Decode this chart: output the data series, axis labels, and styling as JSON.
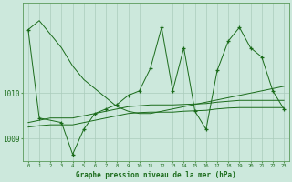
{
  "background_color": "#cce8dc",
  "grid_color": "#aaccbb",
  "line_color": "#1a6b1a",
  "xlabel": "Graphe pression niveau de la mer (hPa)",
  "xlim": [
    -0.5,
    23.5
  ],
  "ylim": [
    1008.5,
    1012.0
  ],
  "yticks": [
    1009,
    1010
  ],
  "xticks": [
    0,
    1,
    2,
    3,
    4,
    5,
    6,
    7,
    8,
    9,
    10,
    11,
    12,
    13,
    14,
    15,
    16,
    17,
    18,
    19,
    20,
    21,
    22,
    23
  ],
  "series_smooth_decline": {
    "x": [
      0,
      1,
      2,
      3,
      4,
      5,
      6,
      7,
      8,
      9,
      10,
      11,
      12,
      13,
      14,
      15,
      16,
      17,
      18,
      19,
      20,
      21,
      22,
      23
    ],
    "y": [
      1011.4,
      1011.6,
      1011.3,
      1011.0,
      1010.6,
      1010.3,
      1010.1,
      1009.9,
      1009.7,
      1009.6,
      1009.55,
      1009.55,
      1009.6,
      1009.65,
      1009.7,
      1009.75,
      1009.8,
      1009.85,
      1009.9,
      1009.95,
      1010.0,
      1010.05,
      1010.1,
      1010.15
    ]
  },
  "series_flat_upper": {
    "x": [
      0,
      1,
      2,
      3,
      4,
      5,
      6,
      7,
      8,
      9,
      10,
      11,
      12,
      13,
      14,
      15,
      16,
      17,
      18,
      19,
      20,
      21,
      22,
      23
    ],
    "y": [
      1009.35,
      1009.4,
      1009.45,
      1009.45,
      1009.45,
      1009.5,
      1009.55,
      1009.6,
      1009.65,
      1009.7,
      1009.72,
      1009.74,
      1009.74,
      1009.74,
      1009.75,
      1009.76,
      1009.77,
      1009.8,
      1009.82,
      1009.84,
      1009.84,
      1009.84,
      1009.84,
      1009.84
    ]
  },
  "series_flat_lower": {
    "x": [
      0,
      1,
      2,
      3,
      4,
      5,
      6,
      7,
      8,
      9,
      10,
      11,
      12,
      13,
      14,
      15,
      16,
      17,
      18,
      19,
      20,
      21,
      22,
      23
    ],
    "y": [
      1009.25,
      1009.28,
      1009.3,
      1009.3,
      1009.3,
      1009.35,
      1009.4,
      1009.45,
      1009.5,
      1009.55,
      1009.57,
      1009.58,
      1009.58,
      1009.58,
      1009.6,
      1009.61,
      1009.62,
      1009.65,
      1009.67,
      1009.68,
      1009.68,
      1009.68,
      1009.68,
      1009.68
    ]
  },
  "series_zigzag": {
    "x": [
      0,
      1,
      3,
      4,
      5,
      6,
      7,
      8,
      9,
      10,
      11,
      12,
      13,
      14,
      15,
      16,
      17,
      18,
      19,
      20,
      21,
      22,
      23
    ],
    "y": [
      1011.4,
      1009.45,
      1009.35,
      1008.65,
      1009.2,
      1009.55,
      1009.65,
      1009.75,
      1009.95,
      1010.05,
      1010.55,
      1011.45,
      1010.05,
      1011.0,
      1009.6,
      1009.2,
      1010.5,
      1011.15,
      1011.45,
      1011.0,
      1010.8,
      1010.05,
      1009.65
    ]
  }
}
